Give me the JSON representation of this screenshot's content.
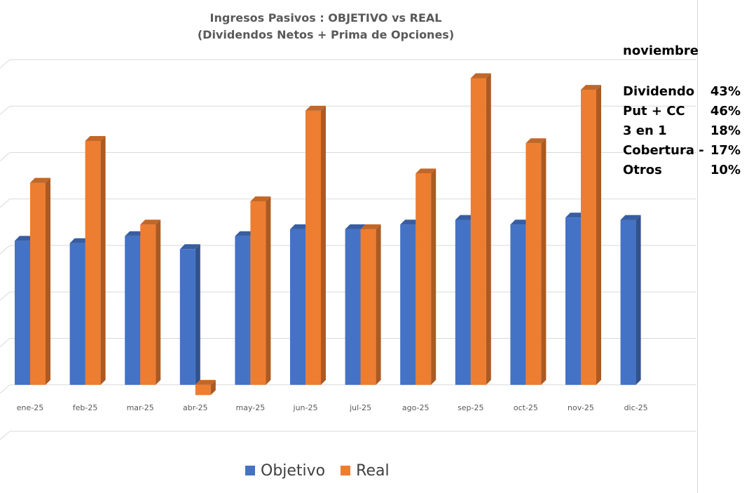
{
  "chart_data": {
    "type": "bar",
    "title": "Ingresos Pasivos : OBJETIVO vs REAL",
    "subtitle": "(Dividendos Netos + Prima de Opciones)",
    "categories": [
      "ene-25",
      "feb-25",
      "mar-25",
      "abr-25",
      "may-25",
      "jun-25",
      "jul-25",
      "ago-25",
      "sep-25",
      "oct-25",
      "nov-25",
      "dic-25"
    ],
    "series": [
      {
        "name": "Objetivo",
        "color": "#4472C4",
        "values": [
          3.1,
          3.05,
          3.2,
          2.92,
          3.2,
          3.35,
          3.35,
          3.45,
          3.55,
          3.45,
          3.6,
          3.55
        ]
      },
      {
        "name": "Real",
        "color": "#ED7D31",
        "values": [
          4.35,
          5.25,
          3.45,
          -0.22,
          3.95,
          5.9,
          3.35,
          4.55,
          6.6,
          5.2,
          6.35,
          null
        ]
      }
    ],
    "ylim": [
      -1,
      7
    ],
    "grid": true,
    "legend_position": "bottom",
    "style": "3d-column"
  },
  "side_panel": {
    "month": "noviembre",
    "breakdown": [
      {
        "label": "Dividendo",
        "value": "43%"
      },
      {
        "label": "Put + CC",
        "value": "46%"
      },
      {
        "label": "3 en 1",
        "value": "18%"
      },
      {
        "label": "Cobertura -",
        "value": "17%"
      },
      {
        "label": "Otros",
        "value": "10%"
      }
    ]
  }
}
